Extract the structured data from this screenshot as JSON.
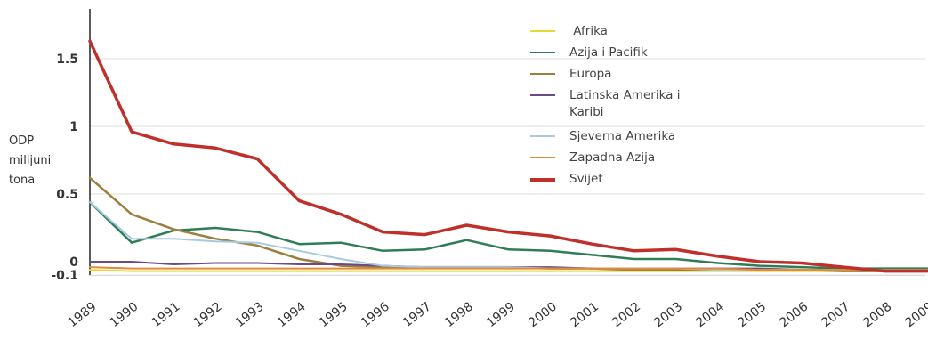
{
  "chart_data": {
    "type": "line",
    "title": "",
    "ylabel_lines": [
      "ODP",
      "milijuni",
      "tona"
    ],
    "xlabel": "",
    "x": [
      "1989",
      "1990",
      "1991",
      "1992",
      "1993",
      "1994",
      "1995",
      "1996",
      "1997",
      "1998",
      "1999",
      "2000",
      "2001",
      "2002",
      "2003",
      "2004",
      "2005",
      "2006",
      "2007",
      "2008",
      "2009"
    ],
    "yticks": [
      {
        "value": 1.5,
        "label": "1.5"
      },
      {
        "value": 1,
        "label": "1"
      },
      {
        "value": 0.5,
        "label": "0.5"
      },
      {
        "value": 0,
        "label": "0"
      },
      {
        "value": -0.1,
        "label": "-0.1"
      }
    ],
    "ylim": [
      -0.1,
      1.7
    ],
    "grid": true,
    "legend_position": "top-right",
    "series": [
      {
        "name": "Afrika",
        "color": "#e8d832",
        "width": 2,
        "values": [
          -0.06,
          -0.07,
          -0.07,
          -0.07,
          -0.07,
          -0.07,
          -0.07,
          -0.07,
          -0.07,
          -0.07,
          -0.07,
          -0.07,
          -0.07,
          -0.07,
          -0.07,
          -0.07,
          -0.07,
          -0.07,
          -0.07,
          -0.07,
          -0.07
        ]
      },
      {
        "name": "Azija i Pacifik",
        "color": "#2e7d57",
        "width": 2.5,
        "values": [
          0.44,
          0.14,
          0.23,
          0.25,
          0.22,
          0.13,
          0.14,
          0.08,
          0.09,
          0.16,
          0.09,
          0.08,
          0.05,
          0.02,
          0.02,
          -0.01,
          -0.03,
          -0.04,
          -0.05,
          -0.05,
          -0.05
        ]
      },
      {
        "name": "Europa",
        "color": "#9a7f3d",
        "width": 2.5,
        "values": [
          0.62,
          0.35,
          0.24,
          0.17,
          0.12,
          0.02,
          -0.03,
          -0.04,
          -0.04,
          -0.04,
          -0.04,
          -0.05,
          -0.05,
          -0.06,
          -0.06,
          -0.06,
          -0.06,
          -0.06,
          -0.07,
          -0.07,
          -0.07
        ]
      },
      {
        "name": "Latinska Amerika i Karibi",
        "color": "#6a4a8a",
        "width": 2,
        "values": [
          0.0,
          0.0,
          -0.02,
          -0.01,
          -0.01,
          -0.02,
          -0.02,
          -0.03,
          -0.04,
          -0.04,
          -0.04,
          -0.04,
          -0.05,
          -0.05,
          -0.05,
          -0.05,
          -0.05,
          -0.06,
          -0.06,
          -0.06,
          -0.06
        ]
      },
      {
        "name": "Sjeverna Amerika",
        "color": "#a9c9e2",
        "width": 2,
        "values": [
          0.44,
          0.17,
          0.17,
          0.15,
          0.14,
          0.08,
          0.02,
          -0.03,
          -0.04,
          -0.04,
          -0.04,
          -0.05,
          -0.05,
          -0.05,
          -0.05,
          -0.06,
          -0.06,
          -0.06,
          -0.06,
          -0.06,
          -0.06
        ]
      },
      {
        "name": "Zapadna Azija",
        "color": "#e08a3c",
        "width": 2,
        "values": [
          -0.04,
          -0.05,
          -0.05,
          -0.05,
          -0.05,
          -0.05,
          -0.05,
          -0.05,
          -0.05,
          -0.05,
          -0.05,
          -0.05,
          -0.05,
          -0.05,
          -0.05,
          -0.05,
          -0.06,
          -0.06,
          -0.06,
          -0.06,
          -0.06
        ]
      },
      {
        "name": "Svijet",
        "color": "#c0302b",
        "width": 3.5,
        "values": [
          1.63,
          0.96,
          0.87,
          0.84,
          0.76,
          0.45,
          0.35,
          0.22,
          0.2,
          0.27,
          0.22,
          0.19,
          0.13,
          0.08,
          0.09,
          0.04,
          0.0,
          -0.01,
          -0.04,
          -0.07,
          -0.07
        ]
      }
    ]
  }
}
